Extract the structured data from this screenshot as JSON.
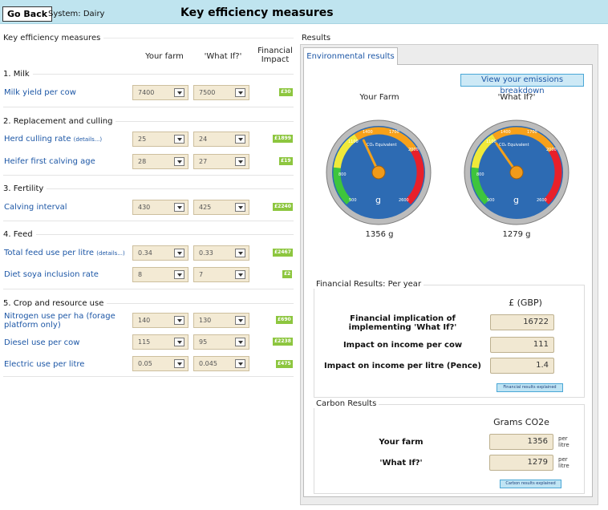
{
  "header": {
    "go_back": "Go Back",
    "system": "System: Dairy",
    "title": "Key efficiency measures"
  },
  "left": {
    "legend": "Key efficiency measures",
    "col_your_farm": "Your farm",
    "col_what_if": "'What If?'",
    "col_financial": "Financial Impact",
    "sections": [
      {
        "title": "1. Milk",
        "rows": [
          {
            "label": "Milk yield per cow",
            "your": "7400",
            "whatif": "7500",
            "impact": "£30"
          }
        ]
      },
      {
        "title": "2. Replacement and culling",
        "rows": [
          {
            "label": "Herd culling rate",
            "details": "(details...)",
            "your": "25",
            "whatif": "24",
            "impact": "£1899"
          },
          {
            "label": "Heifer first calving age",
            "your": "28",
            "whatif": "27",
            "impact": "£19"
          }
        ]
      },
      {
        "title": "3. Fertility",
        "rows": [
          {
            "label": "Calving interval",
            "your": "430",
            "whatif": "425",
            "impact": "£2240"
          }
        ]
      },
      {
        "title": "4. Feed",
        "rows": [
          {
            "label": "Total feed use per litre",
            "details": "(details...)",
            "your": "0.34",
            "whatif": "0.33",
            "impact": "£2467"
          },
          {
            "label": "Diet soya inclusion rate",
            "your": "8",
            "whatif": "7",
            "impact": "£2"
          }
        ]
      },
      {
        "title": "5. Crop and resource use",
        "rows": [
          {
            "label": "Nitrogen use per ha (forage platform only)",
            "your": "140",
            "whatif": "130",
            "impact": "£690"
          },
          {
            "label": "Diesel use per cow",
            "your": "115",
            "whatif": "95",
            "impact": "£2238"
          },
          {
            "label": "Electric use per litre",
            "your": "0.05",
            "whatif": "0.045",
            "impact": "£475"
          }
        ]
      }
    ]
  },
  "results": {
    "legend": "Results",
    "tab": "Environmental results",
    "view_button": "View your emissions breakdown",
    "gauge_left": {
      "title": "Your Farm",
      "value": "1356 g",
      "reading": 1356
    },
    "gauge_right": {
      "title": "'What If?'",
      "value": "1279 g",
      "reading": 1279
    },
    "gauge_labels": {
      "t500": "500",
      "t800": "800",
      "t1100": "1100",
      "t1400": "1400",
      "t1700": "1700",
      "t2000": "2000",
      "t2300": "2300",
      "t2600": "2600",
      "caption": "CO₂ Equivalent",
      "unit": "g"
    },
    "financial": {
      "legend": "Financial Results: Per year",
      "currency": "£ (GBP)",
      "rows": [
        {
          "label": "Financial implication of implementing 'What If?'",
          "value": "16722"
        },
        {
          "label": "Impact on income per cow",
          "value": "111"
        },
        {
          "label": "Impact on income per litre (Pence)",
          "value": "1.4"
        }
      ],
      "explain_button": "Financial results explained"
    },
    "carbon": {
      "legend": "Carbon Results",
      "unit_header": "Grams CO2e",
      "rows": [
        {
          "label": "Your farm",
          "value": "1356",
          "unit": "per litre"
        },
        {
          "label": "'What If?'",
          "value": "1279",
          "unit": "per litre"
        }
      ],
      "explain_button": "Carbon results explained"
    }
  },
  "colors": {
    "accent": "#8dc63f",
    "topbar": "#bfe4ef",
    "link": "#1d57a6",
    "gauge_red": "#e8202a"
  }
}
